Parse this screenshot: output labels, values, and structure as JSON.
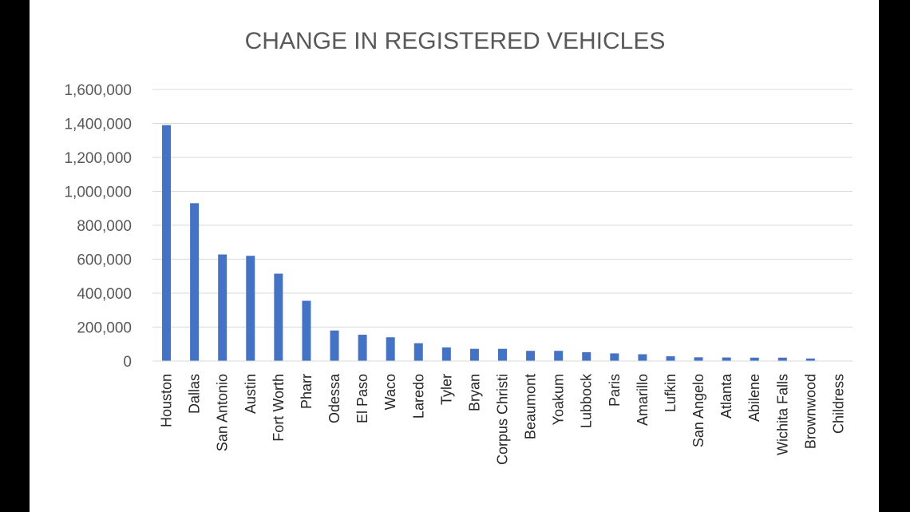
{
  "chart_data": {
    "type": "bar",
    "title": "CHANGE IN REGISTERED VEHICLES",
    "xlabel": "",
    "ylabel": "",
    "ylim": [
      0,
      1600000
    ],
    "y_ticks": [
      "0",
      "200,000",
      "400,000",
      "600,000",
      "800,000",
      "1,000,000",
      "1,200,000",
      "1,400,000",
      "1,600,000"
    ],
    "y_tick_values": [
      0,
      200000,
      400000,
      600000,
      800000,
      1000000,
      1200000,
      1400000,
      1600000
    ],
    "grid": true,
    "legend": "none",
    "bar_color": "#4472C4",
    "categories": [
      "Houston",
      "Dallas",
      "San Antonio",
      "Austin",
      "Fort Worth",
      "Pharr",
      "Odessa",
      "El Paso",
      "Waco",
      "Laredo",
      "Tyler",
      "Bryan",
      "Corpus Christi",
      "Beaumont",
      "Yoakum",
      "Lubbock",
      "Paris",
      "Amarillo",
      "Lufkin",
      "San Angelo",
      "Atlanta",
      "Abilene",
      "Wichita Falls",
      "Brownwood",
      "Childress"
    ],
    "values": [
      1390000,
      930000,
      628000,
      620000,
      515000,
      355000,
      180000,
      155000,
      140000,
      105000,
      80000,
      72000,
      72000,
      60000,
      60000,
      52000,
      45000,
      40000,
      28000,
      22000,
      21000,
      20000,
      20000,
      15000,
      1000
    ]
  }
}
